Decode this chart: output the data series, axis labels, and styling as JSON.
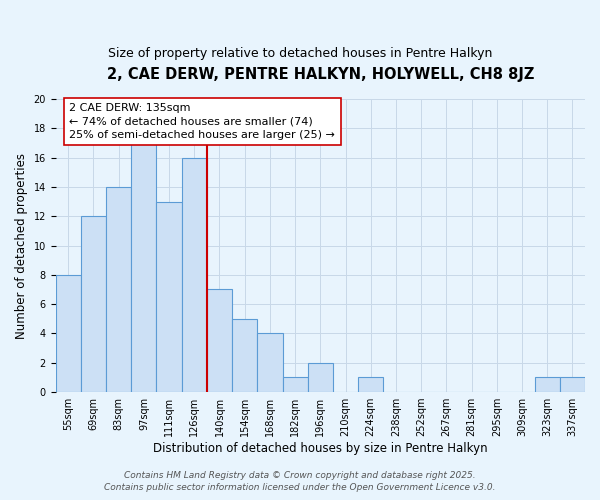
{
  "title": "2, CAE DERW, PENTRE HALKYN, HOLYWELL, CH8 8JZ",
  "subtitle": "Size of property relative to detached houses in Pentre Halkyn",
  "xlabel": "Distribution of detached houses by size in Pentre Halkyn",
  "ylabel": "Number of detached properties",
  "bin_labels": [
    "55sqm",
    "69sqm",
    "83sqm",
    "97sqm",
    "111sqm",
    "126sqm",
    "140sqm",
    "154sqm",
    "168sqm",
    "182sqm",
    "196sqm",
    "210sqm",
    "224sqm",
    "238sqm",
    "252sqm",
    "267sqm",
    "281sqm",
    "295sqm",
    "309sqm",
    "323sqm",
    "337sqm"
  ],
  "bar_values": [
    8,
    12,
    14,
    17,
    13,
    16,
    7,
    5,
    4,
    1,
    2,
    0,
    1,
    0,
    0,
    0,
    0,
    0,
    0,
    1,
    1
  ],
  "bar_color": "#cce0f5",
  "bar_edge_color": "#5b9bd5",
  "ref_line_index": 6.5,
  "reference_line_label": "2 CAE DERW: 135sqm",
  "annotation_line1": "← 74% of detached houses are smaller (74)",
  "annotation_line2": "25% of semi-detached houses are larger (25) →",
  "annotation_box_edge": "#cc0000",
  "ylim": [
    0,
    20
  ],
  "yticks": [
    0,
    2,
    4,
    6,
    8,
    10,
    12,
    14,
    16,
    18,
    20
  ],
  "grid_color": "#c8d8e8",
  "background_color": "#e8f4fd",
  "footer_line1": "Contains HM Land Registry data © Crown copyright and database right 2025.",
  "footer_line2": "Contains public sector information licensed under the Open Government Licence v3.0.",
  "title_fontsize": 10.5,
  "subtitle_fontsize": 9,
  "axis_label_fontsize": 8.5,
  "tick_fontsize": 7,
  "annotation_fontsize": 8,
  "footer_fontsize": 6.5
}
